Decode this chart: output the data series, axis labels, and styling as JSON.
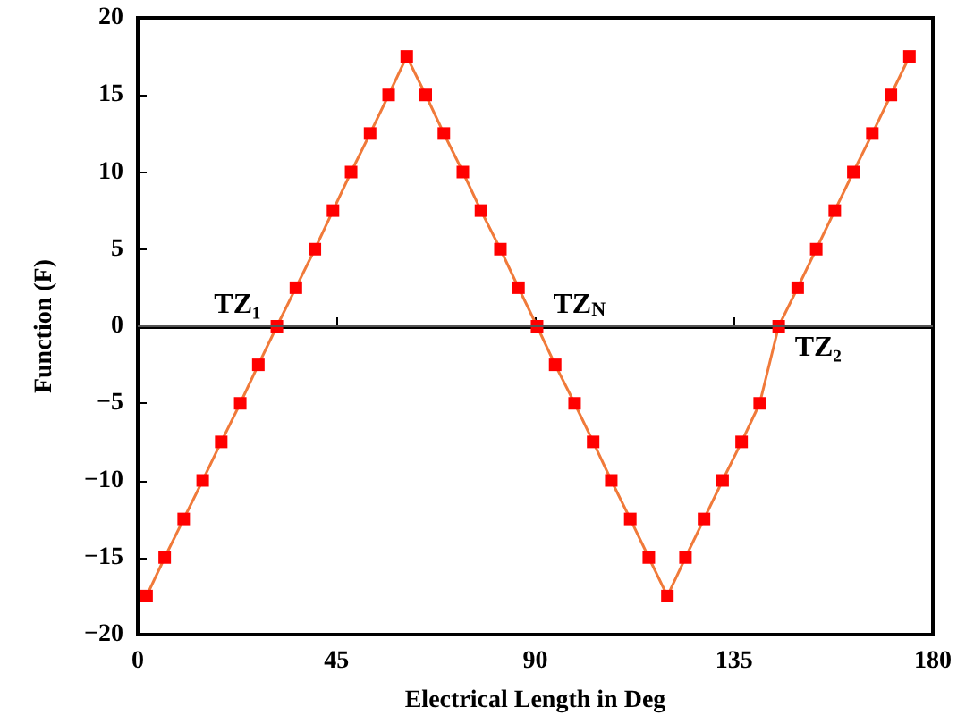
{
  "chart_data": {
    "type": "line",
    "xlabel": "Electrical Length in Deg",
    "ylabel": "Function (F)",
    "x": [
      2.0,
      6.1,
      10.4,
      14.7,
      18.9,
      23.2,
      27.3,
      31.5,
      35.8,
      40.1,
      44.2,
      48.3,
      52.6,
      56.8,
      60.9,
      65.2,
      69.3,
      73.6,
      77.7,
      82.1,
      86.2,
      90.4,
      94.5,
      98.9,
      103.1,
      107.2,
      111.5,
      115.7,
      119.9,
      124.0,
      128.2,
      132.4,
      136.7,
      140.8,
      145.1,
      149.4,
      153.6,
      157.8,
      162.0,
      166.3,
      170.5,
      174.7
    ],
    "series": [
      {
        "color": "#f07a3a",
        "marker": "square",
        "line_style": "solid",
        "colors": [
          "#ff0000",
          "#ff0000",
          "#ff0000",
          "#ff0000",
          "#ff0000",
          "#ff0000",
          "#ff0000",
          "#ff0000",
          "#ff0000",
          "#ff0000",
          "#ff0000",
          "#ff0000",
          "#ff0000",
          "#ff0000",
          "#ff0000",
          "#ff0000",
          "#ff0000",
          "#ff0000",
          "#ff0000",
          "#ff0000",
          "#ff0000",
          "#ff0000",
          "#ff0000",
          "#ff0000",
          "#ff0000",
          "#ff0000",
          "#ff0000",
          "#ff0000",
          "#ff0000",
          "#ff0000",
          "#ff0000",
          "#ff0000",
          "#ff0000",
          "#ff0000",
          "#ff0000",
          "#ff0000",
          "#ff0000",
          "#ff0000",
          "#ff0000",
          "#ff0000",
          "#ff0000",
          "#ff0000"
        ],
        "values": [
          -17.5,
          -15,
          -12.5,
          -10,
          -7.5,
          -5,
          -2.5,
          0,
          2.5,
          5,
          7.5,
          10,
          12.5,
          15,
          17.5,
          15,
          12.5,
          10,
          7.5,
          5,
          2.5,
          0,
          -2.5,
          -5,
          -7.5,
          -10,
          -12.5,
          -15,
          -17.5,
          -15,
          -12.5,
          -10,
          -7.5,
          -5,
          0,
          2.5,
          5,
          7.5,
          10,
          12.5,
          15,
          17.5
        ]
      }
    ],
    "xlim": [
      0,
      180
    ],
    "xticks": [
      0,
      45,
      90,
      135,
      180
    ],
    "ylim": [
      -20,
      20
    ],
    "yticks": [
      -20,
      -15,
      -10,
      -5,
      0,
      5,
      10,
      15,
      20
    ],
    "grid": false,
    "ref_lines": [
      {
        "axis": "y",
        "value": 0,
        "color": "#555555"
      }
    ],
    "annotations": [
      {
        "text": "TZ₁",
        "x": 31.5,
        "y": 0
      },
      {
        "text": "TZ$_{N}$",
        "x": 90.4,
        "y": 0
      },
      {
        "text": "TZ₂",
        "x": 145.1,
        "y": 0
      }
    ]
  }
}
